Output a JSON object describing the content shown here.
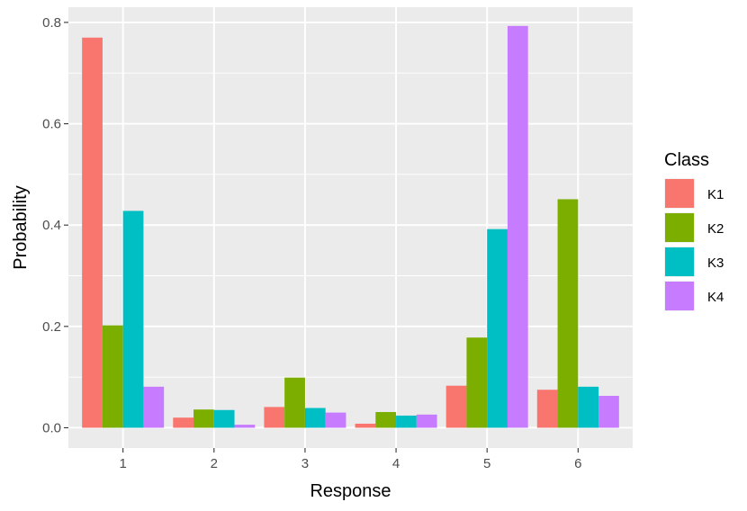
{
  "chart_data": {
    "type": "bar",
    "title": "",
    "xlabel": "Response",
    "ylabel": "Probability",
    "categories": [
      "1",
      "2",
      "3",
      "4",
      "5",
      "6"
    ],
    "ylim": [
      -0.04,
      0.83
    ],
    "yticks": [
      0.0,
      0.2,
      0.4,
      0.6,
      0.8
    ],
    "ytick_labels": [
      "0.0",
      "0.2",
      "0.4",
      "0.6",
      "0.8"
    ],
    "grid": true,
    "legend": {
      "title": "Class",
      "position": "right"
    },
    "series": [
      {
        "name": "K1",
        "color": "#F8766D",
        "values": [
          0.77,
          0.02,
          0.041,
          0.008,
          0.083,
          0.075
        ]
      },
      {
        "name": "K2",
        "color": "#7CAE00",
        "values": [
          0.202,
          0.036,
          0.099,
          0.031,
          0.178,
          0.451
        ]
      },
      {
        "name": "K3",
        "color": "#00BFC4",
        "values": [
          0.428,
          0.035,
          0.039,
          0.024,
          0.392,
          0.081
        ]
      },
      {
        "name": "K4",
        "color": "#C77CFF",
        "values": [
          0.081,
          0.006,
          0.03,
          0.026,
          0.793,
          0.063
        ]
      }
    ]
  }
}
